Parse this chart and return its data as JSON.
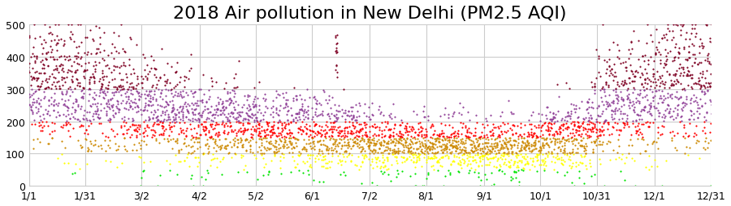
{
  "title": "2018 Air pollution in New Delhi (PM2.5 AQI)",
  "title_fontsize": 16,
  "ylim": [
    0,
    500
  ],
  "yticks": [
    0,
    100,
    200,
    300,
    400,
    500
  ],
  "x_tick_labels": [
    "1/1",
    "1/31",
    "3/2",
    "4/2",
    "5/2",
    "6/1",
    "7/2",
    "8/1",
    "9/1",
    "10/1",
    "10/31",
    "12/1",
    "12/31"
  ],
  "x_tick_days": [
    1,
    31,
    61,
    92,
    122,
    152,
    183,
    213,
    244,
    274,
    304,
    335,
    365
  ],
  "aqi_colors": [
    "#00e400",
    "#ffff00",
    "#cc8800",
    "#ff0000",
    "#8f3f97",
    "#7e0023"
  ],
  "background_color": "#ffffff",
  "grid_color": "#cccccc",
  "dot_size": 2.5,
  "seed": 42,
  "monthly_means": [
    300,
    270,
    220,
    190,
    170,
    155,
    130,
    120,
    115,
    160,
    260,
    310
  ],
  "days_in_month": [
    31,
    28,
    31,
    30,
    31,
    30,
    31,
    31,
    30,
    31,
    30,
    31
  ],
  "dust_storm_day": 165,
  "dust_storm_peak": 470,
  "measurements_per_day": 12
}
